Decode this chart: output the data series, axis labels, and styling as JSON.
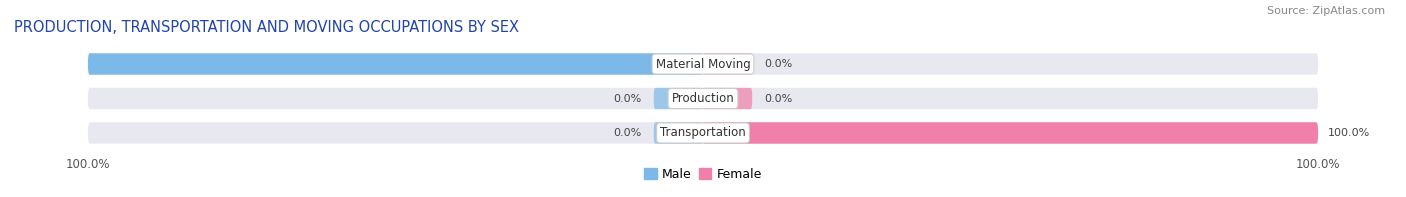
{
  "title": "PRODUCTION, TRANSPORTATION AND MOVING OCCUPATIONS BY SEX",
  "source": "Source: ZipAtlas.com",
  "categories": [
    "Material Moving",
    "Production",
    "Transportation"
  ],
  "male_values": [
    100.0,
    0.0,
    0.0
  ],
  "female_values": [
    0.0,
    0.0,
    100.0
  ],
  "male_color": "#7cb9e8",
  "female_color": "#f07faa",
  "bar_bg_color": "#e8e8f0",
  "bar_height": 0.62,
  "label_color": "#333333",
  "value_color": "#444444",
  "title_fontsize": 10.5,
  "source_fontsize": 8,
  "tick_fontsize": 8.5,
  "cat_fontsize": 8.5,
  "val_fontsize": 8,
  "legend_fontsize": 9
}
